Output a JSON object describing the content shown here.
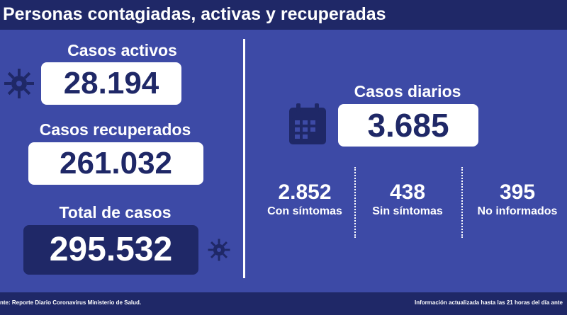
{
  "header": {
    "title": "Personas contagiadas, activas y recuperadas"
  },
  "left": {
    "activos": {
      "label": "Casos activos",
      "value": "28.194"
    },
    "recuperados": {
      "label": "Casos recuperados",
      "value": "261.032"
    },
    "total": {
      "label": "Total de casos",
      "value": "295.532"
    }
  },
  "right": {
    "diarios": {
      "label": "Casos diarios",
      "value": "3.685"
    },
    "breakdown": [
      {
        "value": "2.852",
        "label": "Con síntomas"
      },
      {
        "value": "438",
        "label": "Sin síntomas"
      },
      {
        "value": "395",
        "label": "No informados"
      }
    ]
  },
  "footer": {
    "source": "nte: Reporte Diario Coronavirus Ministerio de Salud.",
    "updated": "Información actualizada hasta las 21 horas  del día ante"
  },
  "colors": {
    "background": "#3d4aa6",
    "dark": "#1f2867",
    "white": "#ffffff"
  },
  "icons": [
    "virus-icon",
    "calendar-icon"
  ]
}
